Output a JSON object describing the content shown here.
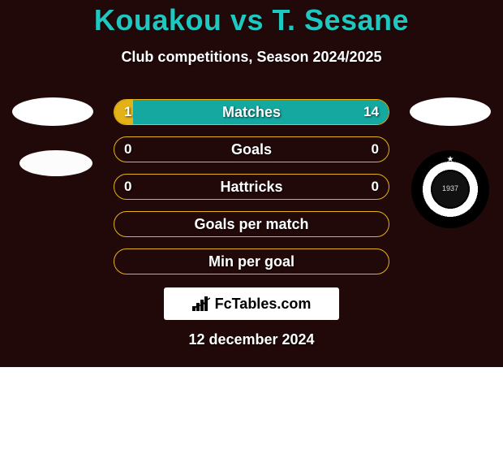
{
  "title_color": "#1ec8c0",
  "title": "Kouakou vs T. Sesane",
  "subtitle": "Club competitions, Season 2024/2025",
  "brand": "FcTables.com",
  "date": "12 december 2024",
  "club_year": "1937",
  "stats": [
    {
      "label": "Matches",
      "left_val": "1",
      "right_val": "14",
      "left_pct": 6.7,
      "right_pct": 93.3,
      "border": "#e2b217",
      "left_fill": "#e2b217",
      "right_fill": "#14a8a0"
    },
    {
      "label": "Goals",
      "left_val": "0",
      "right_val": "0",
      "left_pct": 0,
      "right_pct": 0,
      "border": "#e2b217",
      "left_fill": "#e2b217",
      "right_fill": "#14a8a0"
    },
    {
      "label": "Hattricks",
      "left_val": "0",
      "right_val": "0",
      "left_pct": 0,
      "right_pct": 0,
      "border": "#e2b217",
      "left_fill": "#e2b217",
      "right_fill": "#14a8a0"
    },
    {
      "label": "Goals per match",
      "left_val": "",
      "right_val": "",
      "left_pct": 0,
      "right_pct": 0,
      "border": "#e2b217",
      "left_fill": "#e2b217",
      "right_fill": "#14a8a0"
    },
    {
      "label": "Min per goal",
      "left_val": "",
      "right_val": "",
      "left_pct": 0,
      "right_pct": 0,
      "border": "#e2b217",
      "left_fill": "#e2b217",
      "right_fill": "#14a8a0"
    }
  ]
}
